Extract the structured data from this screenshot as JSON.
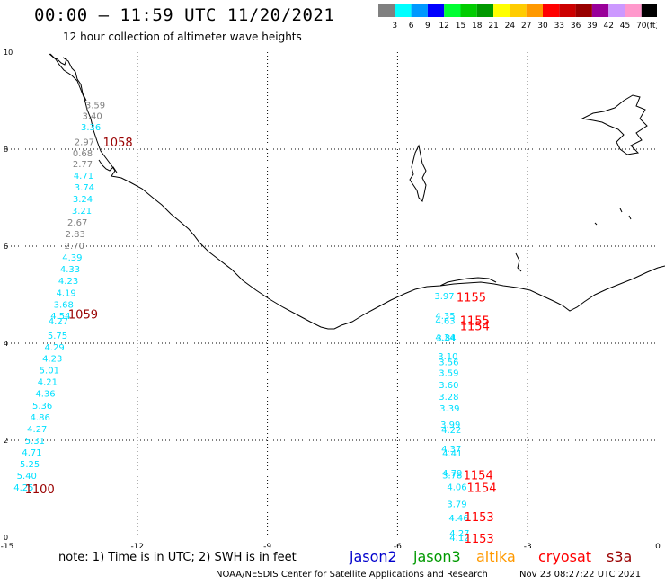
{
  "header": {
    "title": "00:00 – 11:59 UTC 11/20/2021",
    "subtitle": "12 hour collection of altimeter wave heights"
  },
  "legend": {
    "unit": "(ft)",
    "bins": [
      {
        "label": "3",
        "color": "#808080"
      },
      {
        "label": "6",
        "color": "#00ffff"
      },
      {
        "label": "9",
        "color": "#0099ff"
      },
      {
        "label": "12",
        "color": "#0000ff"
      },
      {
        "label": "15",
        "color": "#00ff33"
      },
      {
        "label": "18",
        "color": "#00cc00"
      },
      {
        "label": "21",
        "color": "#009900"
      },
      {
        "label": "24",
        "color": "#ffff00"
      },
      {
        "label": "27",
        "color": "#ffcc00"
      },
      {
        "label": "30",
        "color": "#ff9900"
      },
      {
        "label": "33",
        "color": "#ff0000"
      },
      {
        "label": "36",
        "color": "#cc0000"
      },
      {
        "label": "39",
        "color": "#990000"
      },
      {
        "label": "42",
        "color": "#990099"
      },
      {
        "label": "45",
        "color": "#cc99ff"
      },
      {
        "label": "70",
        "color": "#ff99cc"
      },
      {
        "label": "",
        "color": "#000000"
      }
    ]
  },
  "footer": {
    "note": "note: 1) Time is in UTC; 2) SWH is in feet",
    "credit": "NOAA/NESDIS Center for Satellite Applications and Research",
    "timestamp": "Nov 23 08:27:22 UTC 2021",
    "satellites": [
      {
        "name": "jason2",
        "color": "#0000cc"
      },
      {
        "name": "jason3",
        "color": "#009900"
      },
      {
        "name": "altika",
        "color": "#ff9900"
      },
      {
        "name": "cryosat",
        "color": "#ff0000"
      },
      {
        "name": "s3a",
        "color": "#990000"
      }
    ]
  },
  "chart_data": {
    "type": "scatter",
    "xlim": [
      -15,
      0
    ],
    "ylim": [
      0,
      10
    ],
    "xticks": [
      "-15",
      "-12",
      "-9",
      "-6",
      "-3",
      "0"
    ],
    "yticks": [
      "0",
      "2",
      "4",
      "6",
      "8",
      "10"
    ],
    "grid": true,
    "colors": {
      "gray": "#808080",
      "cyan": "#00e0ff",
      "red": "#ff0000",
      "darkred": "#990000"
    },
    "wave_heights": [
      {
        "x": -12.97,
        "y": 8.92,
        "text": "3.59",
        "c": "gray"
      },
      {
        "x": -13.04,
        "y": 8.69,
        "text": "3.40",
        "c": "gray"
      },
      {
        "x": -13.07,
        "y": 8.46,
        "text": "3.36",
        "c": "cyan"
      },
      {
        "x": -13.22,
        "y": 8.16,
        "text": "2.97",
        "c": "gray"
      },
      {
        "x": -13.26,
        "y": 7.93,
        "text": "0.68",
        "c": "gray"
      },
      {
        "x": -13.26,
        "y": 7.7,
        "text": "2.77",
        "c": "gray"
      },
      {
        "x": -13.24,
        "y": 7.46,
        "text": "4.71",
        "c": "cyan"
      },
      {
        "x": -13.22,
        "y": 7.22,
        "text": "3.74",
        "c": "cyan"
      },
      {
        "x": -13.26,
        "y": 6.98,
        "text": "3.24",
        "c": "cyan"
      },
      {
        "x": -13.28,
        "y": 6.74,
        "text": "3.21",
        "c": "cyan"
      },
      {
        "x": -13.38,
        "y": 6.5,
        "text": "2.67",
        "c": "gray"
      },
      {
        "x": -13.43,
        "y": 6.26,
        "text": "2.83",
        "c": "gray"
      },
      {
        "x": -13.45,
        "y": 6.02,
        "text": "2.70",
        "c": "gray"
      },
      {
        "x": -13.5,
        "y": 5.78,
        "text": "4.39",
        "c": "cyan"
      },
      {
        "x": -13.55,
        "y": 5.54,
        "text": "4.33",
        "c": "cyan"
      },
      {
        "x": -13.59,
        "y": 5.3,
        "text": "4.23",
        "c": "cyan"
      },
      {
        "x": -13.64,
        "y": 5.05,
        "text": "4.19",
        "c": "cyan"
      },
      {
        "x": -13.7,
        "y": 4.81,
        "text": "3.68",
        "c": "cyan"
      },
      {
        "x": -13.77,
        "y": 4.57,
        "text": "4.54",
        "c": "cyan"
      },
      {
        "x": -13.82,
        "y": 4.46,
        "text": "4.27",
        "c": "cyan"
      },
      {
        "x": -13.84,
        "y": 4.17,
        "text": "5.75",
        "c": "cyan"
      },
      {
        "x": -13.91,
        "y": 3.93,
        "text": "4.29",
        "c": "cyan"
      },
      {
        "x": -13.96,
        "y": 3.69,
        "text": "4.23",
        "c": "cyan"
      },
      {
        "x": -14.03,
        "y": 3.45,
        "text": "5.01",
        "c": "cyan"
      },
      {
        "x": -14.07,
        "y": 3.21,
        "text": "4.21",
        "c": "cyan"
      },
      {
        "x": -14.12,
        "y": 2.97,
        "text": "4.36",
        "c": "cyan"
      },
      {
        "x": -14.19,
        "y": 2.72,
        "text": "5.36",
        "c": "cyan"
      },
      {
        "x": -14.24,
        "y": 2.48,
        "text": "4.86",
        "c": "cyan"
      },
      {
        "x": -14.31,
        "y": 2.24,
        "text": "4.27",
        "c": "cyan"
      },
      {
        "x": -14.36,
        "y": 2.0,
        "text": "5.31",
        "c": "cyan"
      },
      {
        "x": -14.43,
        "y": 1.76,
        "text": "4.71",
        "c": "cyan"
      },
      {
        "x": -14.48,
        "y": 1.52,
        "text": "5.25",
        "c": "cyan"
      },
      {
        "x": -14.55,
        "y": 1.28,
        "text": "5.40",
        "c": "cyan"
      },
      {
        "x": -14.62,
        "y": 1.04,
        "text": "4.25",
        "c": "cyan"
      },
      {
        "x": -4.92,
        "y": 4.98,
        "text": "3.97",
        "c": "cyan"
      },
      {
        "x": -4.9,
        "y": 4.57,
        "text": "4.35",
        "c": "cyan"
      },
      {
        "x": -4.9,
        "y": 4.47,
        "text": "4.63",
        "c": "cyan"
      },
      {
        "x": -4.9,
        "y": 4.13,
        "text": "4.34",
        "c": "cyan"
      },
      {
        "x": -4.88,
        "y": 4.12,
        "text": "3.84",
        "c": "cyan"
      },
      {
        "x": -4.84,
        "y": 3.74,
        "text": "3.10",
        "c": "cyan"
      },
      {
        "x": -4.82,
        "y": 3.62,
        "text": "3.56",
        "c": "cyan"
      },
      {
        "x": -4.82,
        "y": 3.4,
        "text": "3.59",
        "c": "cyan"
      },
      {
        "x": -4.82,
        "y": 3.15,
        "text": "3.60",
        "c": "cyan"
      },
      {
        "x": -4.82,
        "y": 2.91,
        "text": "3.28",
        "c": "cyan"
      },
      {
        "x": -4.8,
        "y": 2.67,
        "text": "3.39",
        "c": "cyan"
      },
      {
        "x": -4.78,
        "y": 2.33,
        "text": "3.99",
        "c": "cyan"
      },
      {
        "x": -4.76,
        "y": 2.22,
        "text": "4.22",
        "c": "cyan"
      },
      {
        "x": -4.76,
        "y": 1.83,
        "text": "4.37",
        "c": "cyan"
      },
      {
        "x": -4.74,
        "y": 1.74,
        "text": "4.41",
        "c": "cyan"
      },
      {
        "x": -4.74,
        "y": 1.33,
        "text": "4.79",
        "c": "cyan"
      },
      {
        "x": -4.74,
        "y": 1.29,
        "text": "3.78",
        "c": "cyan"
      },
      {
        "x": -4.63,
        "y": 1.05,
        "text": "4.06",
        "c": "cyan"
      },
      {
        "x": -4.63,
        "y": 0.69,
        "text": "3.79",
        "c": "cyan"
      },
      {
        "x": -4.59,
        "y": 0.41,
        "text": "4.46",
        "c": "cyan"
      },
      {
        "x": -4.57,
        "y": 0.09,
        "text": "4.27",
        "c": "cyan"
      },
      {
        "x": -4.57,
        "y": 0.0,
        "text": "4.12",
        "c": "cyan"
      }
    ],
    "cycle_labels": [
      {
        "x": -12.45,
        "y": 8.15,
        "text": "1058",
        "c": "darkred"
      },
      {
        "x": -13.25,
        "y": 4.6,
        "text": "1059",
        "c": "darkred"
      },
      {
        "x": -14.25,
        "y": 1.0,
        "text": "1100",
        "c": "darkred"
      },
      {
        "x": -4.3,
        "y": 4.95,
        "text": "1155",
        "c": "red"
      },
      {
        "x": -4.22,
        "y": 4.47,
        "text": "1155",
        "c": "red"
      },
      {
        "x": -4.22,
        "y": 4.36,
        "text": "1154",
        "c": "red"
      },
      {
        "x": -4.14,
        "y": 1.29,
        "text": "1154",
        "c": "red"
      },
      {
        "x": -4.06,
        "y": 1.03,
        "text": "1154",
        "c": "red"
      },
      {
        "x": -4.12,
        "y": 0.43,
        "text": "1153",
        "c": "red"
      },
      {
        "x": -4.12,
        "y": -0.02,
        "text": "1153",
        "c": "red"
      }
    ]
  }
}
